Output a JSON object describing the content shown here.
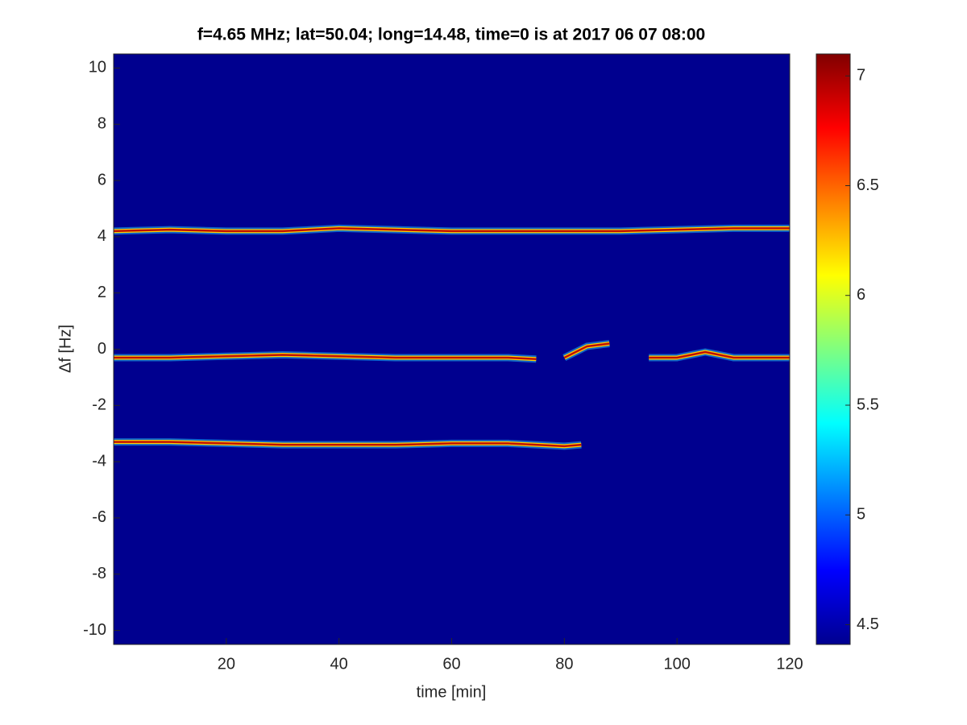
{
  "chart_data": {
    "type": "spectrogram",
    "title": "f=4.65 MHz;  lat=50.04; long=14.48, time=0 is at 2017 06 07 08:00",
    "xlabel": "time [min]",
    "ylabel": "Δf [Hz]",
    "xlim": [
      0,
      120
    ],
    "xticks": [
      20,
      40,
      60,
      80,
      100,
      120
    ],
    "ylim": [
      -10.5,
      10.5
    ],
    "yticks": [
      -10,
      -8,
      -6,
      -4,
      -2,
      0,
      2,
      4,
      6,
      8,
      10
    ],
    "background": "#00008f",
    "series": [
      {
        "color": "#c01000",
        "x": [
          0,
          10,
          20,
          30,
          40,
          50,
          60,
          70,
          80,
          90,
          100,
          110,
          120
        ],
        "values": [
          4.2,
          4.25,
          4.2,
          4.2,
          4.3,
          4.25,
          4.2,
          4.2,
          4.2,
          4.2,
          4.25,
          4.3,
          4.3
        ]
      },
      {
        "color": "#c01000",
        "x": [
          0,
          10,
          20,
          30,
          40,
          50,
          60,
          70,
          75,
          78,
          80,
          84,
          88,
          91,
          95,
          100,
          105,
          110,
          120
        ],
        "values": [
          -0.3,
          -0.3,
          -0.25,
          -0.2,
          -0.25,
          -0.3,
          -0.3,
          -0.3,
          -0.35,
          null,
          -0.3,
          0.1,
          0.2,
          null,
          -0.3,
          -0.3,
          -0.1,
          -0.3,
          -0.3
        ]
      },
      {
        "color": "#c01000",
        "x": [
          0,
          10,
          20,
          30,
          40,
          50,
          60,
          70,
          80,
          83
        ],
        "values": [
          -3.3,
          -3.3,
          -3.35,
          -3.4,
          -3.4,
          -3.4,
          -3.35,
          -3.35,
          -3.45,
          -3.4
        ]
      }
    ],
    "colorbar": {
      "lim": [
        4.41,
        7.1
      ],
      "ticks": [
        4.5,
        5,
        5.5,
        6,
        6.5,
        7
      ]
    }
  }
}
